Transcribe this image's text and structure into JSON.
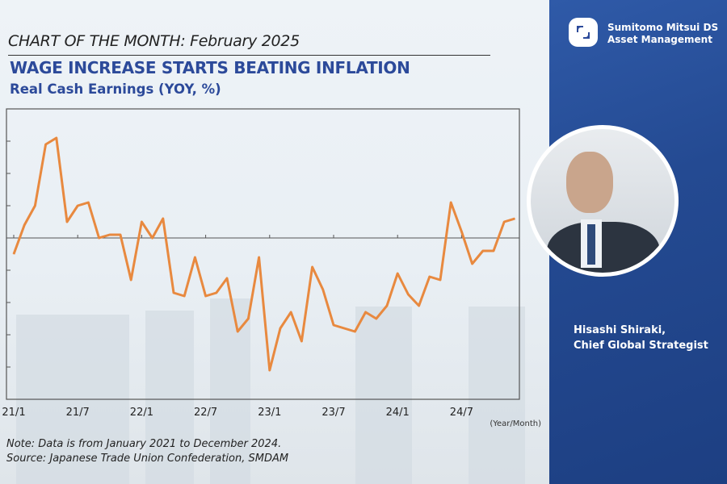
{
  "header": {
    "chart_of_month": "CHART OF THE MONTH: February 2025",
    "title": "WAGE INCREASE STARTS BEATING INFLATION",
    "subtitle": "Real Cash Earnings (YOY, %)"
  },
  "brand": {
    "line1": "Sumitomo Mitsui DS",
    "line2": "Asset Management",
    "color": "#2c4a9a"
  },
  "person": {
    "name": "Hisashi Shiraki,",
    "role": "Chief Global Strategist"
  },
  "notes": {
    "note": "Note: Data is from January 2021 to December 2024.",
    "source": "Source: Japanese Trade Union Confederation, SMDAM"
  },
  "chart_data": {
    "type": "line",
    "title": "Real Cash Earnings (YOY, %)",
    "xlabel": "(Year/Month)",
    "ylabel": "",
    "x_tick_labels": [
      "21/1",
      "21/7",
      "22/1",
      "22/7",
      "23/1",
      "23/7",
      "24/1",
      "24/7"
    ],
    "ylim": [
      -5,
      4
    ],
    "y_tick_step": 1,
    "line_color": "#e8893f",
    "series": [
      {
        "name": "Real Cash Earnings YOY",
        "values": [
          -0.5,
          0.4,
          1.0,
          2.9,
          3.1,
          0.5,
          1.0,
          1.1,
          0.0,
          0.1,
          0.1,
          -1.3,
          0.5,
          0.0,
          0.6,
          -1.7,
          -1.8,
          -0.6,
          -1.8,
          -1.7,
          -1.25,
          -2.9,
          -2.5,
          -0.6,
          -4.1,
          -2.8,
          -2.3,
          -3.2,
          -0.9,
          -1.6,
          -2.7,
          -2.8,
          -2.9,
          -2.3,
          -2.5,
          -2.1,
          -1.1,
          -1.75,
          -2.1,
          -1.2,
          -1.3,
          1.1,
          0.2,
          -0.8,
          -0.4,
          -0.4,
          0.5,
          0.6
        ]
      }
    ]
  }
}
